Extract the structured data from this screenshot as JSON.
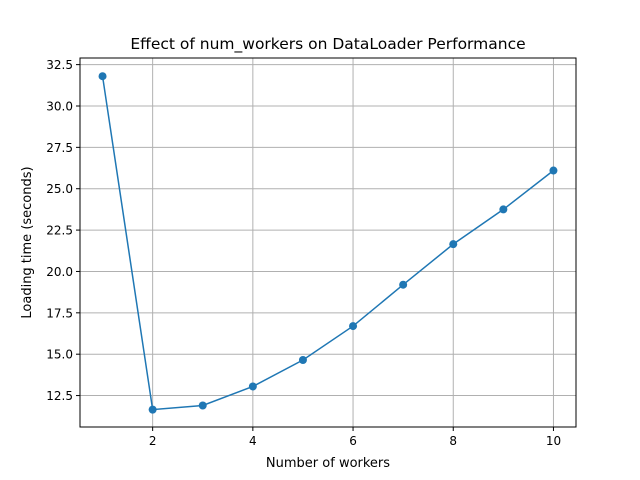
{
  "chart_data": {
    "type": "line",
    "title": "Effect of num_workers on DataLoader Performance",
    "xlabel": "Number of workers",
    "ylabel": "Loading time (seconds)",
    "xlim": [
      0.55,
      10.45
    ],
    "ylim": [
      10.6,
      32.9
    ],
    "xticks": [
      2,
      4,
      6,
      8,
      10
    ],
    "xtick_labels": [
      "2",
      "4",
      "6",
      "8",
      "10"
    ],
    "yticks": [
      12.5,
      15.0,
      17.5,
      20.0,
      22.5,
      25.0,
      27.5,
      30.0,
      32.5
    ],
    "ytick_labels": [
      "12.5",
      "15.0",
      "17.5",
      "20.0",
      "22.5",
      "25.0",
      "27.5",
      "30.0",
      "32.5"
    ],
    "grid": true,
    "series": [
      {
        "color": "#1f77b4",
        "marker": "circle",
        "x": [
          1,
          2,
          3,
          4,
          5,
          6,
          7,
          8,
          9,
          10
        ],
        "y": [
          31.8,
          11.65,
          11.9,
          13.05,
          14.65,
          16.7,
          19.2,
          21.65,
          23.75,
          26.1
        ]
      }
    ]
  }
}
